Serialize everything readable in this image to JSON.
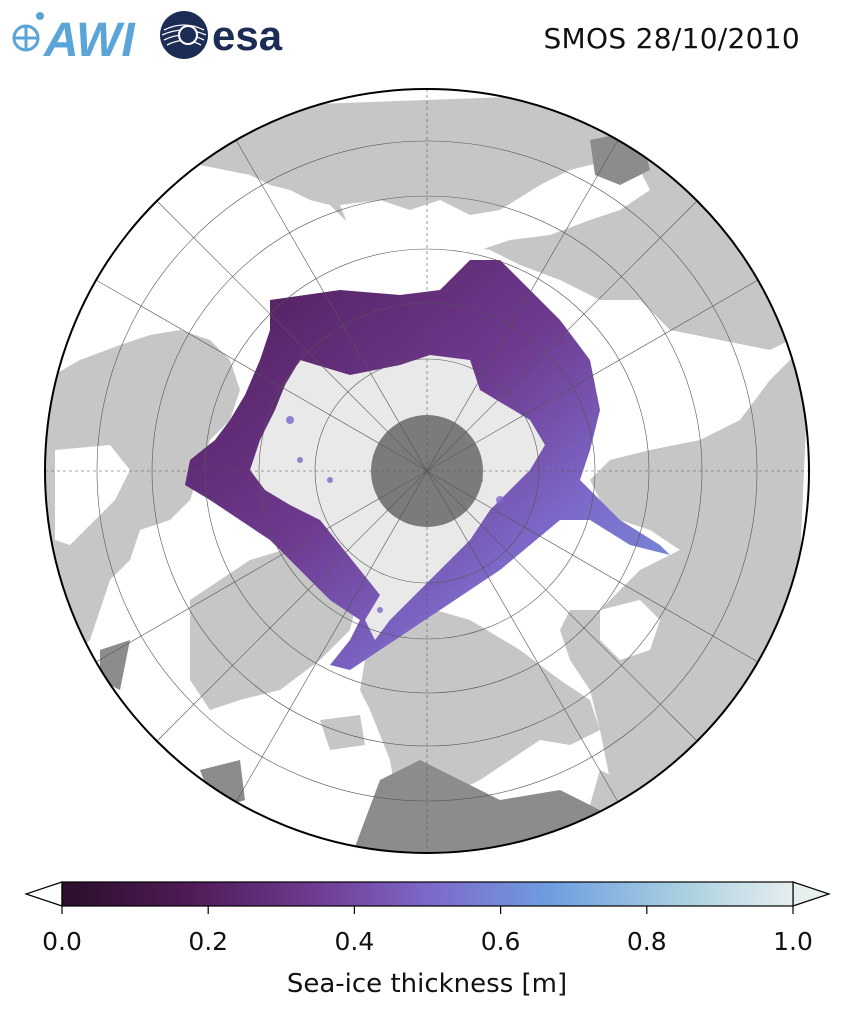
{
  "header": {
    "title": "SMOS 28/10/2010",
    "logos": [
      {
        "name": "awi-logo",
        "text": "AWI",
        "color": "#5aa4d8"
      },
      {
        "name": "esa-logo",
        "text": "esa",
        "color": "#1c2c55"
      }
    ]
  },
  "map": {
    "projection": "north-polar-stereographic",
    "central_meridian_lon": -45,
    "lat_circles": [
      50,
      60,
      70,
      80
    ],
    "pole_hole": "no-data",
    "colors": {
      "land": "#c6c6c6",
      "ocean_open": "#ffffff",
      "ice_thick": "#e9e9e9",
      "pole_hole": "#7b7b7b",
      "border": "#000000",
      "grid": "#555555"
    }
  },
  "colorbar": {
    "label": "Sea-ice thickness [m]",
    "ticks": [
      "0.0",
      "0.2",
      "0.4",
      "0.6",
      "0.8",
      "1.0"
    ],
    "min": 0.0,
    "max": 1.0,
    "extend": "both",
    "cmap_stops": [
      "#2a0f2a",
      "#4e1a55",
      "#6e3a8f",
      "#7d68c8",
      "#6f9ee0",
      "#a6cde0",
      "#e6eeee"
    ]
  }
}
